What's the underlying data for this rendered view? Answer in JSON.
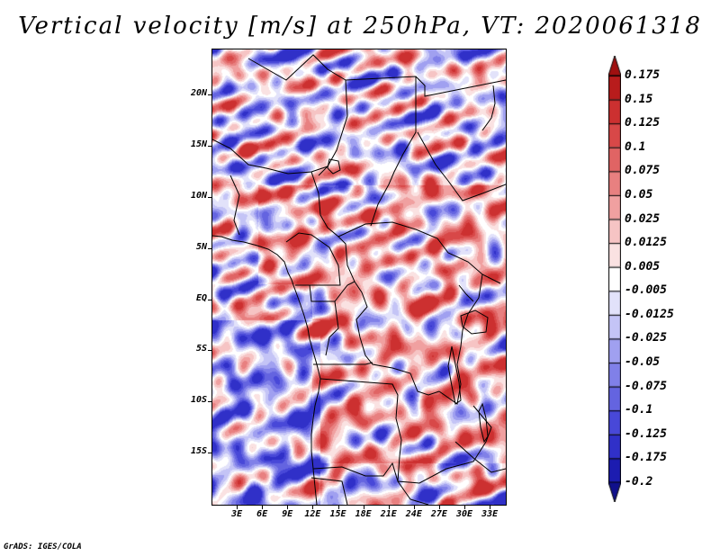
{
  "title": "Vertical velocity [m/s] at 250hPa, VT: 2020061318",
  "credit": "GrADS: IGES/COLA",
  "map": {
    "lat_labels": [
      "20N",
      "15N",
      "10N",
      "5N",
      "EQ",
      "5S",
      "10S",
      "15S"
    ],
    "lat_values": [
      20,
      15,
      10,
      5,
      0,
      -5,
      -10,
      -15
    ],
    "lon_labels": [
      "3E",
      "6E",
      "9E",
      "12E",
      "15E",
      "18E",
      "21E",
      "24E",
      "27E",
      "30E",
      "33E"
    ],
    "lon_values": [
      3,
      6,
      9,
      12,
      15,
      18,
      21,
      24,
      27,
      30,
      33
    ],
    "lat_range": [
      -20,
      24.5
    ],
    "lon_range": [
      0,
      34.8
    ]
  },
  "colorbar": {
    "labels": [
      "0.175",
      "0.15",
      "0.125",
      "0.1",
      "0.075",
      "0.05",
      "0.025",
      "0.0125",
      "0.005",
      "-0.005",
      "-0.0125",
      "-0.025",
      "-0.05",
      "-0.075",
      "-0.1",
      "-0.125",
      "-0.175",
      "-0.2"
    ],
    "colors": [
      "#a01010",
      "#b81c1c",
      "#cc3030",
      "#d84848",
      "#e06464",
      "#e88080",
      "#f0a0a0",
      "#f6c4c4",
      "#fae2e2",
      "#ffffff",
      "#e2e2fa",
      "#c4c4f6",
      "#a0a0f0",
      "#8080e8",
      "#6464e0",
      "#4848d8",
      "#3030c8",
      "#1c1cb0",
      "#10108c"
    ]
  }
}
